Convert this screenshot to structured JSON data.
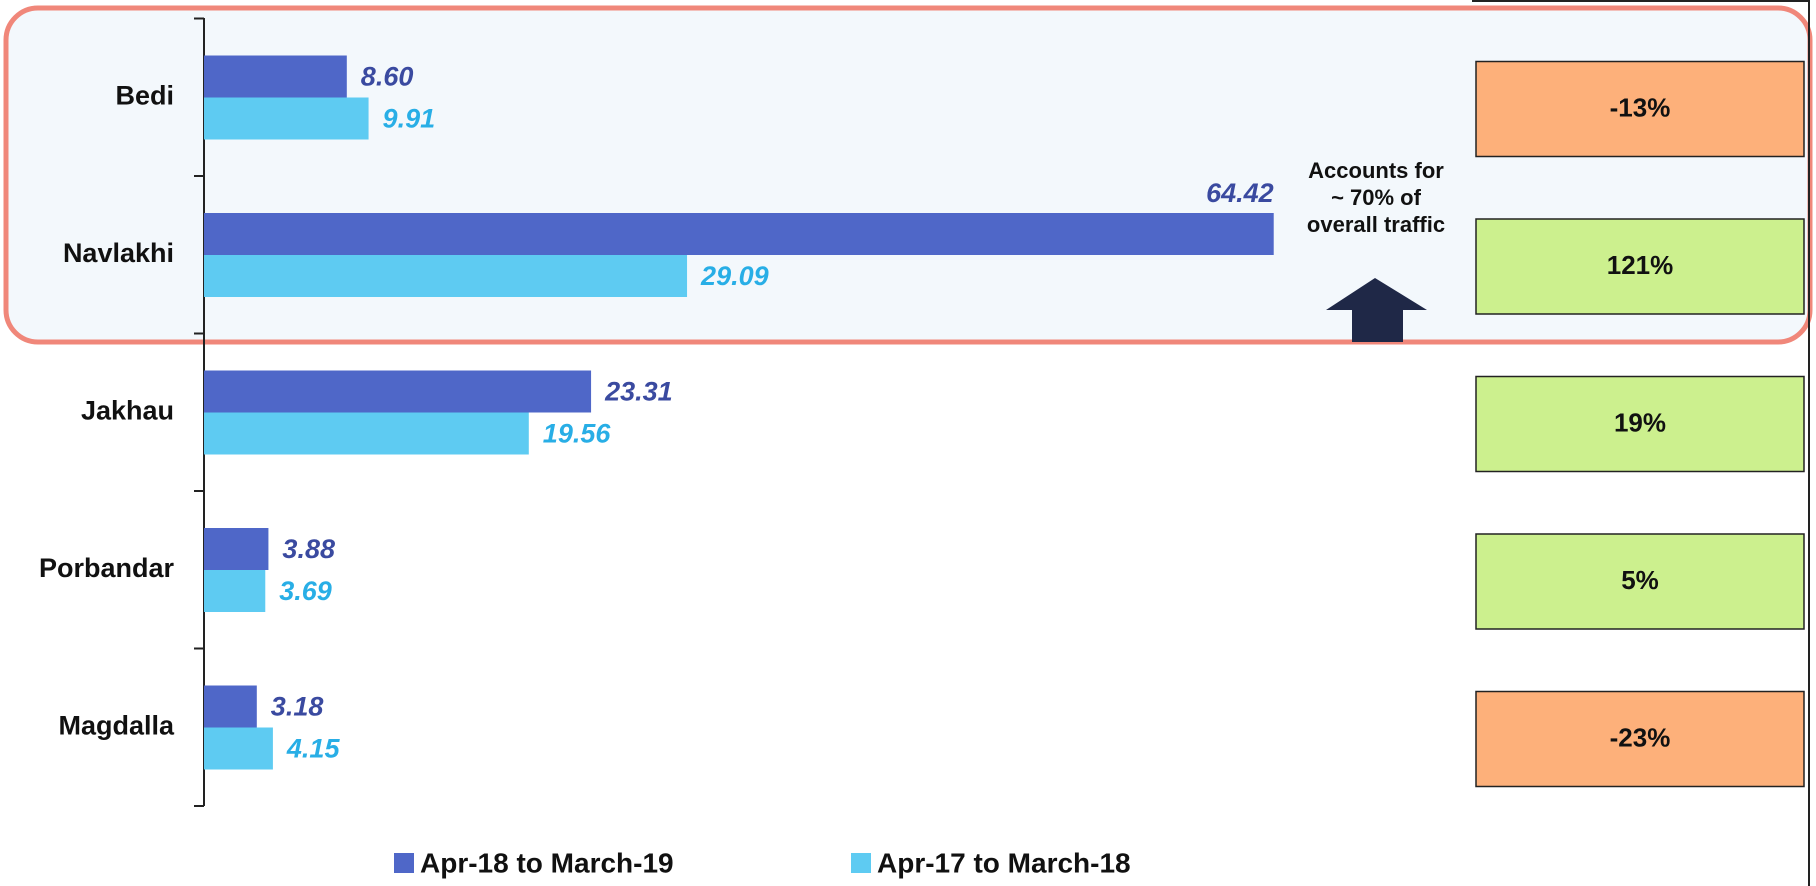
{
  "chart_data": {
    "type": "bar",
    "orientation": "horizontal",
    "categories": [
      "Bedi",
      "Navlakhi",
      "Jakhau",
      "Porbandar",
      "Magdalla"
    ],
    "series": [
      {
        "name": "Apr-18 to March-19",
        "color": "#4f67c8",
        "label_color": "#3a4aa0",
        "values": [
          8.6,
          64.42,
          23.31,
          3.88,
          3.18
        ],
        "value_labels": [
          "8.60",
          "64.42",
          "23.31",
          "3.88",
          "3.18"
        ]
      },
      {
        "name": "Apr-17 to March-18",
        "color": "#5ecbf2",
        "label_color": "#28aee6",
        "values": [
          9.91,
          29.09,
          19.56,
          3.69,
          4.15
        ],
        "value_labels": [
          "9.91",
          "29.09",
          "19.56",
          "3.69",
          "4.15"
        ]
      }
    ],
    "xlim": [
      0,
      76
    ],
    "growth": {
      "values": [
        -13,
        121,
        19,
        5,
        -23
      ],
      "value_labels": [
        "-13%",
        "121%",
        "19%",
        "5%",
        "-23%"
      ],
      "positive_color": "#ccf08e",
      "negative_color": "#fdb07a"
    },
    "annotation": [
      "Accounts for",
      "~ 70% of",
      "overall traffic"
    ],
    "legend": "bottom"
  }
}
